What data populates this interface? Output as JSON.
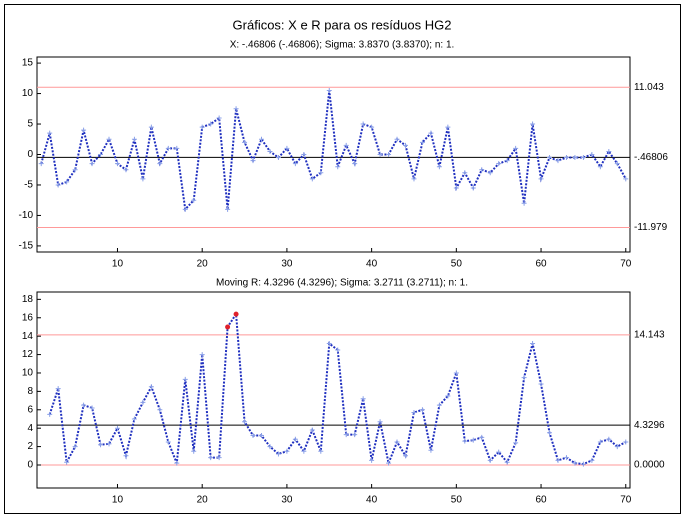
{
  "chart_data": [
    {
      "type": "line",
      "title": "Gráficos: X e R para os resíduos HG2",
      "subtitle": "X: -.46806 (-.46806); Sigma: 3.8370 (3.8370); n: 1.",
      "x": [
        1,
        2,
        3,
        4,
        5,
        6,
        7,
        8,
        9,
        10,
        11,
        12,
        13,
        14,
        15,
        16,
        17,
        18,
        19,
        20,
        21,
        22,
        23,
        24,
        25,
        26,
        27,
        28,
        29,
        30,
        31,
        32,
        33,
        34,
        35,
        36,
        37,
        38,
        39,
        40,
        41,
        42,
        43,
        44,
        45,
        46,
        47,
        48,
        49,
        50,
        51,
        52,
        53,
        54,
        55,
        56,
        57,
        58,
        59,
        60,
        61,
        62,
        63,
        64,
        65,
        66,
        67,
        68,
        69,
        70
      ],
      "series": [
        {
          "color": "#1f2fbf",
          "values": [
            -1.5,
            3.5,
            -5,
            -4.5,
            -2.5,
            4,
            -1.5,
            0,
            2.5,
            -1.5,
            -2.5,
            2.5,
            -4,
            4.5,
            -1.5,
            1,
            1,
            -9,
            -7.5,
            4.5,
            5,
            6,
            -9,
            7.5,
            2,
            -1,
            2.5,
            0.5,
            -0.5,
            1,
            -1.5,
            0,
            -4,
            -3,
            10.5,
            -2,
            1.5,
            -1.5,
            5,
            4.5,
            0,
            0,
            2.5,
            1.5,
            -4,
            2,
            3.5,
            -2,
            4.5,
            -5.5,
            -3,
            -5.5,
            -2.5,
            -3,
            -1.5,
            -1,
            1,
            -8,
            5,
            -4,
            -0.5,
            -1,
            -0.5,
            -0.5,
            -0.5,
            0,
            -2,
            0.5,
            -1.5,
            -4
          ]
        }
      ],
      "control_lines": [
        {
          "value": 11.043,
          "label": "11.043",
          "color": "#ff9999"
        },
        {
          "value": -0.46806,
          "label": "-.46806",
          "color": "#000000"
        },
        {
          "value": -11.979,
          "label": "-11.979",
          "color": "#ff9999"
        }
      ],
      "xlim": [
        0.5,
        70.5
      ],
      "xticks": [
        10,
        20,
        30,
        40,
        50,
        60,
        70
      ],
      "ylim": [
        -16,
        16
      ],
      "yticks": [
        15,
        10,
        5,
        0,
        -5,
        -10,
        -15
      ]
    },
    {
      "type": "line",
      "subtitle": "Moving R: 4.3296 (4.3296); Sigma: 3.2711 (3.2711); n: 1.",
      "x": [
        2,
        3,
        4,
        5,
        6,
        7,
        8,
        9,
        10,
        11,
        12,
        13,
        14,
        15,
        16,
        17,
        18,
        19,
        20,
        21,
        22,
        23,
        24,
        25,
        26,
        27,
        28,
        29,
        30,
        31,
        32,
        33,
        34,
        35,
        36,
        37,
        38,
        39,
        40,
        41,
        42,
        43,
        44,
        45,
        46,
        47,
        48,
        49,
        50,
        51,
        52,
        53,
        54,
        55,
        56,
        57,
        58,
        59,
        60,
        61,
        62,
        63,
        64,
        65,
        66,
        67,
        68,
        69,
        70
      ],
      "series": [
        {
          "color": "#1f2fbf",
          "highlight_color": "#e0202a",
          "values": [
            5.5,
            8.3,
            0.3,
            2,
            6.5,
            6.2,
            2.2,
            2.3,
            4,
            1,
            5,
            6.8,
            8.5,
            6,
            2.5,
            0.2,
            9.3,
            1.5,
            12,
            0.8,
            0.8,
            15,
            16.4,
            4.7,
            3.2,
            3.2,
            2,
            1.2,
            1.5,
            2.8,
            1.5,
            3.8,
            1.5,
            13.2,
            12.5,
            3.3,
            3.3,
            7.2,
            0.5,
            4.7,
            0.2,
            2.5,
            1,
            5.7,
            6,
            1.6,
            6.5,
            7.5,
            10,
            2.6,
            2.7,
            3,
            0.5,
            1.4,
            0.3,
            2.4,
            9.5,
            13.2,
            8.8,
            3.5,
            0.5,
            0.8,
            0.2,
            0.1,
            0.5,
            2.5,
            2.8,
            2,
            2.5
          ]
        }
      ],
      "control_lines": [
        {
          "value": 14.143,
          "label": "14.143",
          "color": "#ff9999"
        },
        {
          "value": 4.3296,
          "label": "4.3296",
          "color": "#000000"
        },
        {
          "value": 0,
          "label": "0.0000",
          "color": "#ff9999"
        }
      ],
      "xlim": [
        0.5,
        70.5
      ],
      "xticks": [
        10,
        20,
        30,
        40,
        50,
        60,
        70
      ],
      "ylim": [
        -2.5,
        18.8
      ],
      "yticks": [
        18,
        16,
        14,
        12,
        10,
        8,
        6,
        4,
        2,
        0
      ]
    }
  ]
}
